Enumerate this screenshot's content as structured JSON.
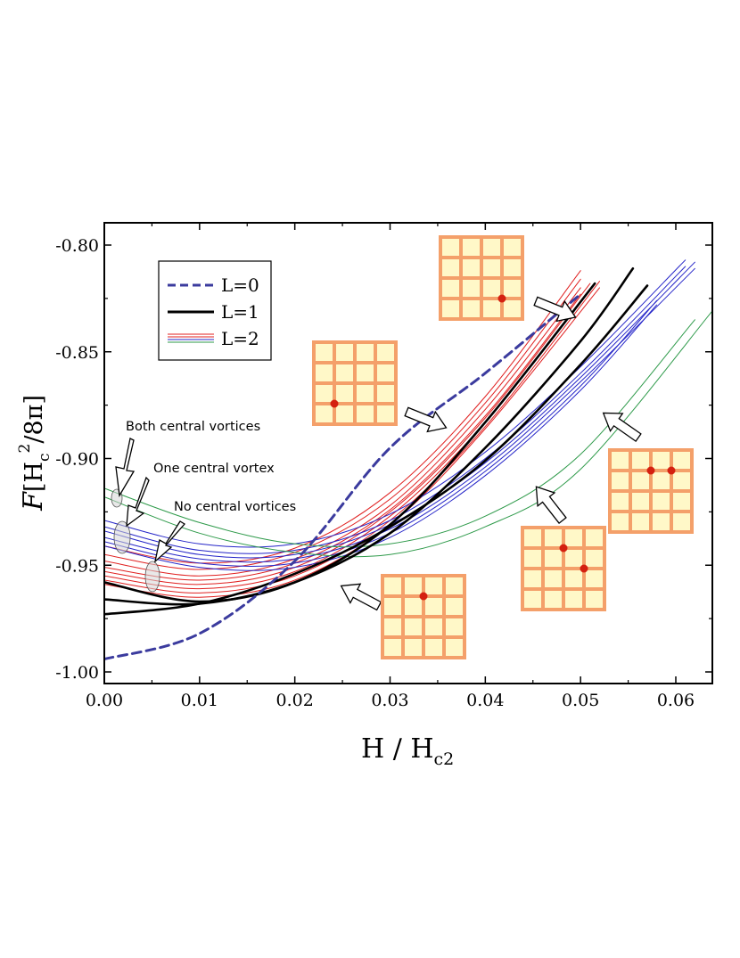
{
  "chart_data": {
    "type": "line",
    "xlabel": "H / H",
    "xlabel_sub": "c2",
    "ylabel_symbol": "F",
    "ylabel_parts": [
      "[H",
      "c",
      "2",
      "/8π]"
    ],
    "xlim": [
      0.0,
      0.065
    ],
    "ylim": [
      -1.0,
      -0.79
    ],
    "x_ticks": [
      "0.00",
      "0.01",
      "0.02",
      "0.03",
      "0.04",
      "0.05",
      "0.06"
    ],
    "y_ticks": [
      "-1.00",
      "-0.95",
      "-0.90",
      "-0.85",
      "-0.80"
    ],
    "x_tick_values": [
      0.0,
      0.01,
      0.02,
      0.03,
      0.04,
      0.05,
      0.06
    ],
    "y_tick_values": [
      -1.0,
      -0.95,
      -0.9,
      -0.85,
      -0.8
    ],
    "legend": {
      "placement": "top-left",
      "entries": [
        {
          "label": "L=0",
          "style": "dashed",
          "colors": [
            "#3b3b9e"
          ]
        },
        {
          "label": "L=1",
          "style": "solid-thick",
          "colors": [
            "#000000"
          ]
        },
        {
          "label": "L=2",
          "style": "solid-thin",
          "colors": [
            "#e02020",
            "#2424c8",
            "#2e9a4a"
          ]
        }
      ]
    },
    "annotations": [
      {
        "text": "Both central vortices"
      },
      {
        "text": "One central vortex"
      },
      {
        "text": "No central vortices"
      }
    ],
    "series": [
      {
        "group": "L=0",
        "color": "#3b3b9e",
        "dash": true,
        "width": 3,
        "x": [
          0.0,
          0.01,
          0.02,
          0.03,
          0.04,
          0.05
        ],
        "y": [
          -0.994,
          -0.982,
          -0.948,
          -0.895,
          -0.86,
          -0.823
        ]
      },
      {
        "group": "L=1",
        "color": "#000000",
        "width": 2.6,
        "x": [
          0.0,
          0.01,
          0.02,
          0.03,
          0.04,
          0.05,
          0.057
        ],
        "y": [
          -0.973,
          -0.968,
          -0.954,
          -0.932,
          -0.901,
          -0.856,
          -0.819
        ]
      },
      {
        "group": "L=1",
        "color": "#000000",
        "width": 2.6,
        "x": [
          0.0,
          0.01,
          0.02,
          0.03,
          0.04,
          0.05,
          0.0555
        ],
        "y": [
          -0.966,
          -0.968,
          -0.958,
          -0.935,
          -0.895,
          -0.845,
          -0.811
        ]
      },
      {
        "group": "L=1",
        "color": "#000000",
        "width": 2.6,
        "x": [
          0.0,
          0.01,
          0.02,
          0.03,
          0.04,
          0.0515
        ],
        "y": [
          -0.958,
          -0.967,
          -0.958,
          -0.931,
          -0.883,
          -0.818
        ]
      },
      {
        "group": "L=2",
        "color": "#e02020",
        "width": 1,
        "x": [
          0.0,
          0.01,
          0.02,
          0.03,
          0.04,
          0.05
        ],
        "y": [
          -0.941,
          -0.949,
          -0.942,
          -0.916,
          -0.871,
          -0.812
        ]
      },
      {
        "group": "L=2",
        "color": "#e02020",
        "width": 1,
        "x": [
          0.0,
          0.01,
          0.02,
          0.03,
          0.04,
          0.05
        ],
        "y": [
          -0.945,
          -0.952,
          -0.944,
          -0.919,
          -0.874,
          -0.816
        ]
      },
      {
        "group": "L=2",
        "color": "#e02020",
        "width": 1,
        "x": [
          0.0,
          0.01,
          0.02,
          0.03,
          0.04,
          0.05
        ],
        "y": [
          -0.948,
          -0.955,
          -0.947,
          -0.922,
          -0.877,
          -0.82
        ]
      },
      {
        "group": "L=2",
        "color": "#e02020",
        "width": 1,
        "x": [
          0.0,
          0.01,
          0.02,
          0.03,
          0.04,
          0.05
        ],
        "y": [
          -0.951,
          -0.957,
          -0.949,
          -0.924,
          -0.88,
          -0.823
        ]
      },
      {
        "group": "L=2",
        "color": "#e02020",
        "width": 1,
        "x": [
          0.0,
          0.01,
          0.02,
          0.03,
          0.04,
          0.051
        ],
        "y": [
          -0.953,
          -0.959,
          -0.951,
          -0.925,
          -0.881,
          -0.818
        ]
      },
      {
        "group": "L=2",
        "color": "#e02020",
        "width": 1,
        "x": [
          0.0,
          0.01,
          0.02,
          0.03,
          0.04,
          0.051
        ],
        "y": [
          -0.955,
          -0.961,
          -0.953,
          -0.927,
          -0.883,
          -0.821
        ]
      },
      {
        "group": "L=2",
        "color": "#e02020",
        "width": 1,
        "x": [
          0.0,
          0.01,
          0.02,
          0.03,
          0.04,
          0.052
        ],
        "y": [
          -0.957,
          -0.963,
          -0.955,
          -0.929,
          -0.885,
          -0.817
        ]
      },
      {
        "group": "L=2",
        "color": "#e02020",
        "width": 1,
        "x": [
          0.0,
          0.01,
          0.02,
          0.03,
          0.04,
          0.052
        ],
        "y": [
          -0.959,
          -0.965,
          -0.957,
          -0.931,
          -0.886,
          -0.82
        ]
      },
      {
        "group": "L=2",
        "color": "#2424c8",
        "width": 1,
        "x": [
          0.0,
          0.01,
          0.02,
          0.03,
          0.04,
          0.05,
          0.061
        ],
        "y": [
          -0.929,
          -0.94,
          -0.94,
          -0.926,
          -0.897,
          -0.857,
          -0.807
        ]
      },
      {
        "group": "L=2",
        "color": "#2424c8",
        "width": 1,
        "x": [
          0.0,
          0.01,
          0.02,
          0.03,
          0.04,
          0.05,
          0.061
        ],
        "y": [
          -0.932,
          -0.943,
          -0.943,
          -0.929,
          -0.9,
          -0.86,
          -0.81
        ]
      },
      {
        "group": "L=2",
        "color": "#2424c8",
        "width": 1,
        "x": [
          0.0,
          0.01,
          0.02,
          0.03,
          0.04,
          0.05,
          0.062
        ],
        "y": [
          -0.934,
          -0.945,
          -0.945,
          -0.931,
          -0.902,
          -0.862,
          -0.808
        ]
      },
      {
        "group": "L=2",
        "color": "#2424c8",
        "width": 1,
        "x": [
          0.0,
          0.01,
          0.02,
          0.03,
          0.04,
          0.05,
          0.062
        ],
        "y": [
          -0.937,
          -0.947,
          -0.947,
          -0.933,
          -0.904,
          -0.864,
          -0.811
        ]
      },
      {
        "group": "L=2",
        "color": "#2424c8",
        "width": 1,
        "x": [
          0.0,
          0.01,
          0.02,
          0.03,
          0.04,
          0.05,
          0.058
        ],
        "y": [
          -0.939,
          -0.949,
          -0.949,
          -0.935,
          -0.906,
          -0.866,
          -0.826
        ]
      },
      {
        "group": "L=2",
        "color": "#2424c8",
        "width": 1,
        "x": [
          0.0,
          0.01,
          0.02,
          0.03,
          0.04,
          0.05,
          0.058
        ],
        "y": [
          -0.941,
          -0.951,
          -0.951,
          -0.937,
          -0.908,
          -0.868,
          -0.828
        ]
      },
      {
        "group": "L=2",
        "color": "#2e9a4a",
        "width": 1,
        "x": [
          0.0,
          0.01,
          0.02,
          0.03,
          0.04,
          0.05,
          0.062
        ],
        "y": [
          -0.914,
          -0.93,
          -0.94,
          -0.94,
          -0.927,
          -0.898,
          -0.835
        ]
      },
      {
        "group": "L=2",
        "color": "#2e9a4a",
        "width": 1,
        "x": [
          0.0,
          0.01,
          0.02,
          0.03,
          0.04,
          0.05,
          0.064
        ],
        "y": [
          -0.918,
          -0.935,
          -0.944,
          -0.945,
          -0.932,
          -0.905,
          -0.83
        ]
      }
    ],
    "insets": [
      {
        "dots": [
          [
            3,
            2
          ]
        ]
      },
      {
        "dots": [
          [
            3,
            0
          ]
        ]
      },
      {
        "dots": [
          [
            1,
            1
          ]
        ]
      },
      {
        "dots": [
          [
            1,
            1
          ],
          [
            2,
            2
          ]
        ]
      },
      {
        "dots": [
          [
            1,
            1
          ],
          [
            1,
            2
          ]
        ]
      }
    ]
  },
  "colors": {
    "inset_fill": "#fff8c8",
    "inset_border": "#f4a06a",
    "vortex_dot": "#d42010",
    "annot_ellipse": "#c8c8c8"
  }
}
